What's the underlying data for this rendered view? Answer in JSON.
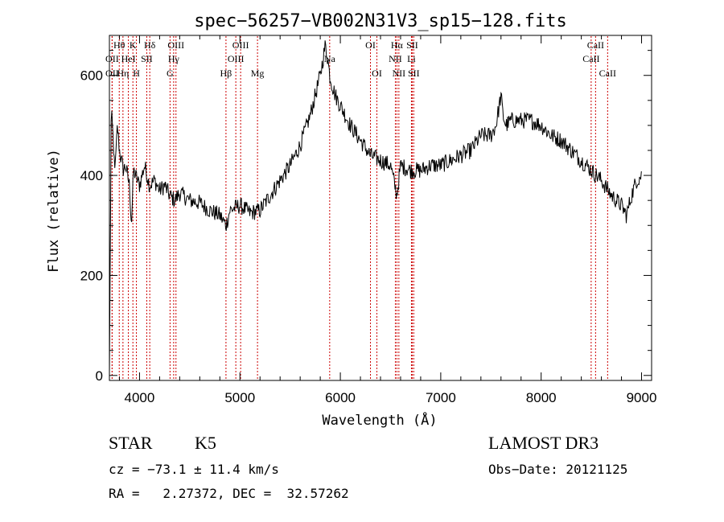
{
  "chart_data": {
    "type": "line",
    "title": "spec−56257−VB002N31V3_sp15−128.fits",
    "xlabel": "Wavelength (Å)",
    "ylabel": "Flux (relative)",
    "xlim": [
      3700,
      9100
    ],
    "ylim": [
      -10,
      680
    ],
    "x_ticks": [
      4000,
      5000,
      6000,
      7000,
      8000,
      9000
    ],
    "x_tick_labels": [
      "4000",
      "5000",
      "6000",
      "7000",
      "8000",
      "9000"
    ],
    "y_ticks": [
      0,
      200,
      400,
      600
    ],
    "y_tick_labels": [
      "0",
      "200",
      "400",
      "600"
    ],
    "series": [
      {
        "name": "flux",
        "x": [
          3700,
          3720,
          3740,
          3760,
          3780,
          3800,
          3820,
          3840,
          3860,
          3880,
          3900,
          3920,
          3940,
          3960,
          3980,
          4000,
          4050,
          4100,
          4150,
          4200,
          4250,
          4300,
          4350,
          4400,
          4500,
          4600,
          4700,
          4800,
          4862,
          4900,
          5000,
          5100,
          5200,
          5300,
          5400,
          5500,
          5600,
          5700,
          5750,
          5800,
          5850,
          5870,
          5895,
          5920,
          5950,
          6000,
          6100,
          6200,
          6300,
          6400,
          6500,
          6563,
          6600,
          6700,
          6800,
          6900,
          7000,
          7100,
          7200,
          7300,
          7400,
          7500,
          7550,
          7600,
          7620,
          7650,
          7700,
          7800,
          7900,
          8000,
          8100,
          8200,
          8300,
          8400,
          8500,
          8600,
          8700,
          8800,
          8850,
          8900,
          8950,
          9000
        ],
        "values": [
          0,
          560,
          440,
          420,
          500,
          450,
          430,
          410,
          420,
          400,
          380,
          300,
          410,
          400,
          390,
          380,
          420,
          380,
          390,
          370,
          380,
          360,
          350,
          365,
          350,
          345,
          330,
          320,
          300,
          330,
          340,
          325,
          330,
          360,
          390,
          420,
          460,
          520,
          560,
          600,
          660,
          640,
          600,
          580,
          560,
          540,
          500,
          470,
          440,
          430,
          420,
          360,
          420,
          410,
          410,
          420,
          420,
          430,
          440,
          450,
          480,
          480,
          500,
          560,
          520,
          500,
          510,
          510,
          510,
          500,
          480,
          470,
          450,
          430,
          410,
          390,
          360,
          340,
          320,
          360,
          390,
          400
        ]
      }
    ],
    "annotations": [
      {
        "label": "OII",
        "x": 3727,
        "row": 2
      },
      {
        "label": "Hθ",
        "x": 3798,
        "row": 1
      },
      {
        "label": "OII",
        "x": 3727,
        "row": 3
      },
      {
        "label": "Hη",
        "x": 3835,
        "row": 3
      },
      {
        "label": "HeI",
        "x": 3889,
        "row": 2
      },
      {
        "label": "K",
        "x": 3934,
        "row": 1
      },
      {
        "label": "H",
        "x": 3969,
        "row": 3
      },
      {
        "label": "SII",
        "x": 4072,
        "row": 2
      },
      {
        "label": "Hδ",
        "x": 4102,
        "row": 1
      },
      {
        "label": "G",
        "x": 4304,
        "row": 3
      },
      {
        "label": "Hγ",
        "x": 4340,
        "row": 2
      },
      {
        "label": "OIII",
        "x": 4363,
        "row": 1
      },
      {
        "label": "Hβ",
        "x": 4861,
        "row": 3
      },
      {
        "label": "OIII",
        "x": 4959,
        "row": 2
      },
      {
        "label": "OIII",
        "x": 5007,
        "row": 1
      },
      {
        "label": "Mg",
        "x": 5175,
        "row": 3
      },
      {
        "label": "Na",
        "x": 5894,
        "row": 2
      },
      {
        "label": "OI",
        "x": 6300,
        "row": 1
      },
      {
        "label": "OI",
        "x": 6364,
        "row": 3
      },
      {
        "label": "NII",
        "x": 6548,
        "row": 2
      },
      {
        "label": "Hα",
        "x": 6563,
        "row": 1
      },
      {
        "label": "NII",
        "x": 6583,
        "row": 3
      },
      {
        "label": "SII",
        "x": 6716,
        "row": 1
      },
      {
        "label": "Li",
        "x": 6708,
        "row": 2
      },
      {
        "label": "SII",
        "x": 6731,
        "row": 3
      },
      {
        "label": "CaII",
        "x": 8498,
        "row": 2
      },
      {
        "label": "CaII",
        "x": 8542,
        "row": 1
      },
      {
        "label": "CaII",
        "x": 8662,
        "row": 3
      }
    ],
    "line_color": "#000000",
    "marker_color": "#cc0000"
  },
  "info": {
    "class_label": "STAR",
    "subclass": "K5",
    "survey": "LAMOST DR3",
    "velocity": "cz = −73.1 ± 11.4 km/s",
    "obs_date": "Obs−Date: 20121125",
    "coords": "RA =   2.27372, DEC =  32.57262"
  }
}
